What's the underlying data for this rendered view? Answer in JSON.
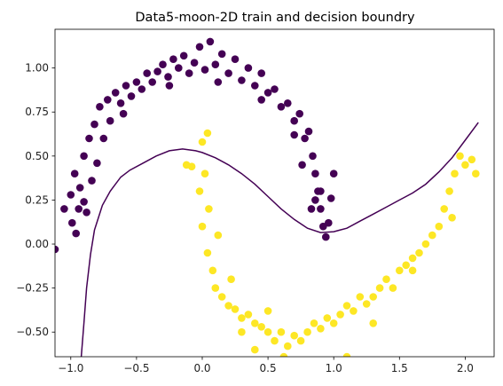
{
  "chart_data": {
    "type": "scatter",
    "title": "Data5-moon-2D train and decision boundry",
    "xlabel": "",
    "ylabel": "",
    "xlim": [
      -1.12,
      2.22
    ],
    "ylim": [
      -0.64,
      1.22
    ],
    "xticks": [
      -1.0,
      -0.5,
      0.0,
      0.5,
      1.0,
      1.5,
      2.0
    ],
    "xtick_labels": [
      "−1.0",
      "−0.5",
      "0.0",
      "0.5",
      "1.0",
      "1.5",
      "2.0"
    ],
    "yticks": [
      -0.5,
      -0.25,
      0.0,
      0.25,
      0.5,
      0.75,
      1.0
    ],
    "ytick_labels": [
      "−0.50",
      "−0.25",
      "0.00",
      "0.25",
      "0.50",
      "0.75",
      "1.00"
    ],
    "grid": false,
    "legend": "none",
    "series": [
      {
        "color": "#440154",
        "points": [
          [
            -1.12,
            -0.03
          ],
          [
            -1.0,
            0.28
          ],
          [
            -0.99,
            0.12
          ],
          [
            -0.97,
            0.4
          ],
          [
            -0.96,
            0.06
          ],
          [
            -0.93,
            0.32
          ],
          [
            -0.9,
            0.5
          ],
          [
            -0.88,
            0.18
          ],
          [
            -0.86,
            0.6
          ],
          [
            -0.84,
            0.36
          ],
          [
            -0.82,
            0.68
          ],
          [
            -0.8,
            0.46
          ],
          [
            -0.78,
            0.78
          ],
          [
            -0.75,
            0.6
          ],
          [
            -0.72,
            0.82
          ],
          [
            -0.7,
            0.7
          ],
          [
            -0.66,
            0.86
          ],
          [
            -0.62,
            0.8
          ],
          [
            -0.58,
            0.9
          ],
          [
            -0.54,
            0.84
          ],
          [
            -0.5,
            0.92
          ],
          [
            -0.46,
            0.88
          ],
          [
            -0.42,
            0.97
          ],
          [
            -0.38,
            0.92
          ],
          [
            -0.34,
            0.98
          ],
          [
            -0.3,
            1.02
          ],
          [
            -0.26,
            0.95
          ],
          [
            -0.22,
            1.05
          ],
          [
            -0.18,
            1.0
          ],
          [
            -0.14,
            1.07
          ],
          [
            -0.1,
            0.97
          ],
          [
            -0.06,
            1.03
          ],
          [
            -0.02,
            1.12
          ],
          [
            0.02,
            0.99
          ],
          [
            0.06,
            1.15
          ],
          [
            0.1,
            1.02
          ],
          [
            0.15,
            1.08
          ],
          [
            0.2,
            0.97
          ],
          [
            0.25,
            1.05
          ],
          [
            0.3,
            0.93
          ],
          [
            0.35,
            1.0
          ],
          [
            0.4,
            0.9
          ],
          [
            0.45,
            0.97
          ],
          [
            0.5,
            0.86
          ],
          [
            0.55,
            0.88
          ],
          [
            0.6,
            0.78
          ],
          [
            0.65,
            0.8
          ],
          [
            0.7,
            0.7
          ],
          [
            0.74,
            0.74
          ],
          [
            0.78,
            0.6
          ],
          [
            0.81,
            0.64
          ],
          [
            0.84,
            0.5
          ],
          [
            0.86,
            0.4
          ],
          [
            0.88,
            0.3
          ],
          [
            0.9,
            0.2
          ],
          [
            0.92,
            0.1
          ],
          [
            0.94,
            0.04
          ],
          [
            0.96,
            0.12
          ],
          [
            0.98,
            0.26
          ],
          [
            1.0,
            0.4
          ],
          [
            0.83,
            0.2
          ],
          [
            0.86,
            0.25
          ],
          [
            -0.9,
            0.24
          ],
          [
            -0.94,
            0.2
          ],
          [
            -1.05,
            0.2
          ],
          [
            -0.6,
            0.74
          ],
          [
            -0.25,
            0.9
          ],
          [
            0.12,
            0.92
          ],
          [
            0.45,
            0.82
          ],
          [
            0.7,
            0.62
          ],
          [
            0.76,
            0.45
          ],
          [
            0.9,
            0.3
          ]
        ]
      },
      {
        "color": "#fde725",
        "points": [
          [
            -0.12,
            0.45
          ],
          [
            -0.08,
            0.44
          ],
          [
            0.0,
            0.58
          ],
          [
            0.04,
            0.63
          ],
          [
            0.02,
            0.4
          ],
          [
            0.05,
            0.2
          ],
          [
            0.0,
            0.1
          ],
          [
            0.04,
            -0.05
          ],
          [
            0.08,
            -0.15
          ],
          [
            0.1,
            -0.25
          ],
          [
            0.15,
            -0.3
          ],
          [
            0.2,
            -0.35
          ],
          [
            0.25,
            -0.37
          ],
          [
            0.3,
            -0.42
          ],
          [
            0.35,
            -0.4
          ],
          [
            0.4,
            -0.45
          ],
          [
            0.45,
            -0.47
          ],
          [
            0.5,
            -0.5
          ],
          [
            0.55,
            -0.55
          ],
          [
            0.6,
            -0.5
          ],
          [
            0.65,
            -0.58
          ],
          [
            0.7,
            -0.52
          ],
          [
            0.75,
            -0.55
          ],
          [
            0.8,
            -0.5
          ],
          [
            0.85,
            -0.45
          ],
          [
            0.9,
            -0.48
          ],
          [
            0.95,
            -0.42
          ],
          [
            1.0,
            -0.45
          ],
          [
            1.05,
            -0.4
          ],
          [
            1.1,
            -0.35
          ],
          [
            1.15,
            -0.38
          ],
          [
            1.2,
            -0.3
          ],
          [
            1.25,
            -0.34
          ],
          [
            1.3,
            -0.3
          ],
          [
            1.35,
            -0.25
          ],
          [
            1.4,
            -0.2
          ],
          [
            1.45,
            -0.25
          ],
          [
            1.5,
            -0.15
          ],
          [
            1.55,
            -0.12
          ],
          [
            1.6,
            -0.08
          ],
          [
            1.65,
            -0.05
          ],
          [
            1.7,
            0.0
          ],
          [
            1.75,
            0.05
          ],
          [
            1.8,
            0.1
          ],
          [
            1.84,
            0.2
          ],
          [
            1.88,
            0.3
          ],
          [
            1.92,
            0.4
          ],
          [
            1.96,
            0.5
          ],
          [
            2.0,
            0.45
          ],
          [
            2.05,
            0.48
          ],
          [
            2.08,
            0.4
          ],
          [
            0.62,
            -0.64
          ],
          [
            1.1,
            -0.64
          ],
          [
            0.3,
            -0.5
          ],
          [
            0.5,
            -0.38
          ],
          [
            0.4,
            -0.6
          ],
          [
            1.3,
            -0.45
          ],
          [
            1.6,
            -0.15
          ],
          [
            1.9,
            0.15
          ],
          [
            0.12,
            0.05
          ],
          [
            -0.02,
            0.3
          ],
          [
            0.22,
            -0.2
          ]
        ]
      }
    ],
    "decision_boundary": [
      [
        -0.92,
        -0.64
      ],
      [
        -0.9,
        -0.45
      ],
      [
        -0.88,
        -0.25
      ],
      [
        -0.85,
        -0.06
      ],
      [
        -0.82,
        0.08
      ],
      [
        -0.76,
        0.22
      ],
      [
        -0.7,
        0.3
      ],
      [
        -0.62,
        0.38
      ],
      [
        -0.55,
        0.42
      ],
      [
        -0.45,
        0.46
      ],
      [
        -0.35,
        0.5
      ],
      [
        -0.25,
        0.53
      ],
      [
        -0.15,
        0.54
      ],
      [
        -0.05,
        0.53
      ],
      [
        0.0,
        0.52
      ],
      [
        0.1,
        0.49
      ],
      [
        0.2,
        0.45
      ],
      [
        0.3,
        0.4
      ],
      [
        0.4,
        0.34
      ],
      [
        0.5,
        0.27
      ],
      [
        0.6,
        0.2
      ],
      [
        0.7,
        0.14
      ],
      [
        0.8,
        0.09
      ],
      [
        0.9,
        0.065
      ],
      [
        1.0,
        0.07
      ],
      [
        1.1,
        0.09
      ],
      [
        1.2,
        0.13
      ],
      [
        1.3,
        0.17
      ],
      [
        1.4,
        0.21
      ],
      [
        1.5,
        0.25
      ],
      [
        1.6,
        0.29
      ],
      [
        1.7,
        0.34
      ],
      [
        1.8,
        0.41
      ],
      [
        1.9,
        0.49
      ],
      [
        2.0,
        0.59
      ],
      [
        2.1,
        0.69
      ]
    ],
    "boundary_color": "#440154"
  }
}
